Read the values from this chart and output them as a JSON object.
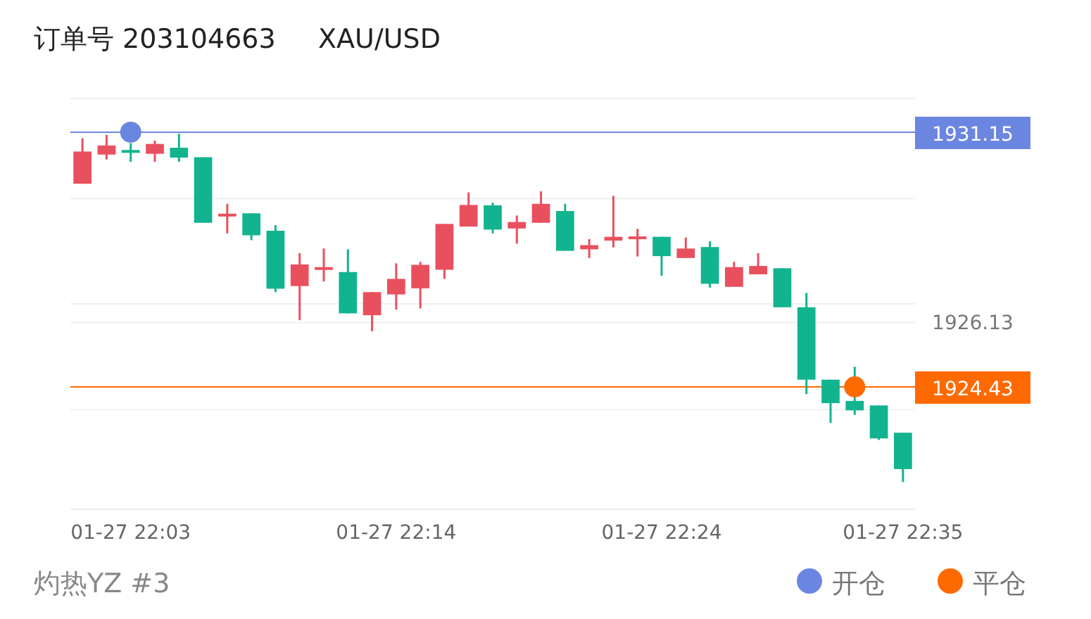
{
  "chart_data": {
    "type": "candlestick",
    "title": "订单号 203104663     XAU/USD",
    "annotations": [
      "灼热YZ #3"
    ],
    "categories": [
      null,
      null,
      "01-27 22:03",
      null,
      null,
      null,
      null,
      null,
      null,
      null,
      null,
      null,
      null,
      "01-27 22:14",
      null,
      null,
      null,
      null,
      null,
      null,
      null,
      null,
      null,
      null,
      "01-27 22:24",
      null,
      null,
      null,
      null,
      null,
      null,
      null,
      null,
      null,
      "01-27 22:35"
    ],
    "ohlc": [
      [
        1929.79,
        1930.99,
        1929.79,
        1930.64
      ],
      [
        1930.56,
        1931.08,
        1930.43,
        1930.8
      ],
      [
        1930.68,
        1930.86,
        1930.37,
        1930.64
      ],
      [
        1930.58,
        1930.93,
        1930.37,
        1930.84
      ],
      [
        1930.74,
        1931.11,
        1930.37,
        1930.48
      ],
      [
        1930.49,
        1930.49,
        1928.76,
        1928.76
      ],
      [
        1928.93,
        1929.26,
        1928.48,
        1929.0
      ],
      [
        1929.01,
        1929.01,
        1928.3,
        1928.43
      ],
      [
        1928.55,
        1928.7,
        1926.93,
        1927.02
      ],
      [
        1927.09,
        1927.96,
        1926.19,
        1927.66
      ],
      [
        1927.53,
        1928.08,
        1927.21,
        1927.59
      ],
      [
        1927.46,
        1928.06,
        1926.37,
        1926.37
      ],
      [
        1926.32,
        1926.93,
        1925.9,
        1926.93
      ],
      [
        1926.87,
        1927.69,
        1926.47,
        1927.28
      ],
      [
        1927.03,
        1927.73,
        1926.5,
        1927.65
      ],
      [
        1927.52,
        1928.73,
        1927.28,
        1928.73
      ],
      [
        1928.66,
        1929.56,
        1928.66,
        1929.23
      ],
      [
        1929.22,
        1929.29,
        1928.48,
        1928.58
      ],
      [
        1928.61,
        1928.95,
        1928.21,
        1928.78
      ],
      [
        1928.76,
        1929.59,
        1928.76,
        1929.26
      ],
      [
        1929.07,
        1929.26,
        1928.02,
        1928.02
      ],
      [
        1928.06,
        1928.33,
        1927.83,
        1928.17
      ],
      [
        1928.29,
        1929.47,
        1928.11,
        1928.39
      ],
      [
        1928.37,
        1928.6,
        1927.87,
        1928.4
      ],
      [
        1928.39,
        1928.39,
        1927.36,
        1927.88
      ],
      [
        1927.83,
        1928.37,
        1927.83,
        1928.08
      ],
      [
        1928.12,
        1928.27,
        1927.05,
        1927.15
      ],
      [
        1927.07,
        1927.73,
        1927.07,
        1927.59
      ],
      [
        1927.4,
        1927.96,
        1927.4,
        1927.62
      ],
      [
        1927.56,
        1927.56,
        1926.53,
        1926.53
      ],
      [
        1926.53,
        1926.91,
        1924.24,
        1924.62
      ],
      [
        1924.62,
        1924.62,
        1923.48,
        1924.0
      ],
      [
        1924.06,
        1924.96,
        1923.69,
        1923.81
      ],
      [
        1923.94,
        1923.94,
        1923.03,
        1923.07
      ],
      [
        1923.22,
        1923.22,
        1921.92,
        1922.26
      ]
    ],
    "colors": [
      "#e9505e",
      "#e9505e",
      "#12b48f",
      "#e9505e",
      "#12b48f",
      "#12b48f",
      "#e9505e",
      "#12b48f",
      "#12b48f",
      "#e9505e",
      "#e9505e",
      "#12b48f",
      "#e9505e",
      "#e9505e",
      "#e9505e",
      "#e9505e",
      "#e9505e",
      "#12b48f",
      "#e9505e",
      "#e9505e",
      "#12b48f",
      "#e9505e",
      "#e9505e",
      "#e9505e",
      "#12b48f",
      "#e9505e",
      "#12b48f",
      "#e9505e",
      "#e9505e",
      "#12b48f",
      "#12b48f",
      "#12b48f",
      "#12b48f",
      "#12b48f",
      "#12b48f"
    ],
    "series": [
      {
        "name": "开仓",
        "type": "scatter",
        "color": "#6b86e0",
        "values": [
          null,
          null,
          1931.15,
          null,
          null,
          null,
          null,
          null,
          null,
          null,
          null,
          null,
          null,
          null,
          null,
          null,
          null,
          null,
          null,
          null,
          null,
          null,
          null,
          null,
          null,
          null,
          null,
          null,
          null,
          null,
          null,
          null,
          null,
          null,
          null
        ]
      },
      {
        "name": "平仓",
        "type": "scatter",
        "color": "#ff6a00",
        "values": [
          null,
          null,
          null,
          null,
          null,
          null,
          null,
          null,
          null,
          null,
          null,
          null,
          null,
          null,
          null,
          null,
          null,
          null,
          null,
          null,
          null,
          null,
          null,
          null,
          null,
          null,
          null,
          null,
          null,
          null,
          null,
          null,
          1924.43,
          null,
          null
        ]
      }
    ],
    "marker": "circle",
    "ref_lines": [
      {
        "axis": "y",
        "value": 1931.15,
        "label": "1931.15",
        "color": "#6b86e0"
      },
      {
        "axis": "y",
        "value": 1924.43,
        "label": "1924.43",
        "color": "#ff6a00"
      }
    ],
    "ylim": [
      1921.2,
      1932.04
    ],
    "yticks": [
      1931.15,
      {
        "value": 1929.4,
        "label": null
      },
      {
        "value": 1926.62,
        "label": null
      },
      1926.13,
      1924.43,
      {
        "value": 1923.83,
        "label": null
      }
    ],
    "grid": "y",
    "legend": "bottom right"
  }
}
